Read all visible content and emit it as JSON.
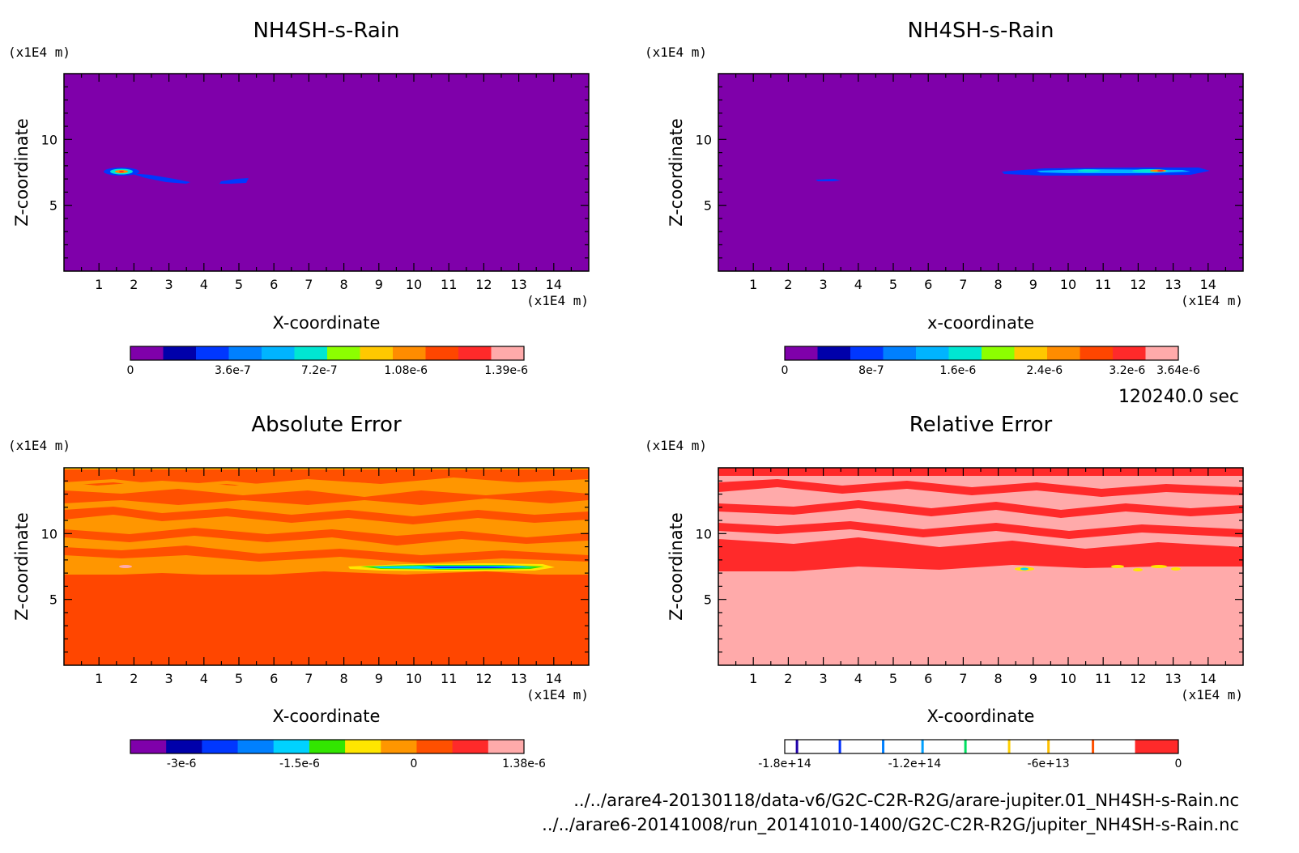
{
  "time_label": "120240.0 sec",
  "footer": {
    "line1": "../../arare4-20130118/data-v6/G2C-C2R-R2G/arare-jupiter.01_NH4SH-s-Rain.nc",
    "line2": "../../arare6-20141008/run_20141010-1400/G2C-C2R-R2G/jupiter_NH4SH-s-Rain.nc"
  },
  "panels": [
    {
      "title": "NH4SH-s-Rain",
      "xlabel": "X-coordinate",
      "ylabel": "Z-coordinate",
      "x_unit": "(x1E4 m)",
      "y_unit": "(x1E4 m)",
      "background_color": "#7f00aa",
      "colorbar": {
        "colors": [
          "#7f00aa",
          "#0000aa",
          "#0037ff",
          "#0080ff",
          "#00b4ff",
          "#00e6d2",
          "#8cff00",
          "#ffc800",
          "#ff8c00",
          "#ff4600",
          "#ff2a2a",
          "#ffaaaa"
        ],
        "labels": [
          "0",
          "3.6e-7",
          "7.2e-7",
          "1.08e-6",
          "1.39e-6"
        ]
      }
    },
    {
      "title": "NH4SH-s-Rain",
      "xlabel": "x-coordinate",
      "ylabel": "Z-coordinate",
      "x_unit": "(x1E4 m)",
      "y_unit": "(x1E4 m)",
      "background_color": "#7f00aa",
      "colorbar": {
        "colors": [
          "#7f00aa",
          "#0000aa",
          "#0037ff",
          "#0080ff",
          "#00b4ff",
          "#00e6d2",
          "#8cff00",
          "#ffc800",
          "#ff8c00",
          "#ff4600",
          "#ff2a2a",
          "#ffaaaa"
        ],
        "labels": [
          "0",
          "8e-7",
          "1.6e-6",
          "2.4e-6",
          "3.2e-6",
          "3.64e-6"
        ]
      }
    },
    {
      "title": "Absolute Error",
      "xlabel": "X-coordinate",
      "ylabel": "Z-coordinate",
      "x_unit": "(x1E4 m)",
      "y_unit": "(x1E4 m)",
      "background_color": "#ff4600",
      "colorbar": {
        "colors": [
          "#7f00aa",
          "#0000aa",
          "#0037ff",
          "#0080ff",
          "#00d2ff",
          "#32e600",
          "#ffe600",
          "#ff9600",
          "#ff5000",
          "#ff2a2a",
          "#ffaaaa"
        ],
        "labels": [
          "-3e-6",
          "-1.5e-6",
          "0",
          "1.38e-6"
        ]
      }
    },
    {
      "title": "Relative Error",
      "xlabel": "X-coordinate",
      "ylabel": "Z-coordinate",
      "x_unit": "(x1E4 m)",
      "y_unit": "(x1E4 m)",
      "background_color": "#ffaaaa",
      "colorbar": {
        "colors": [
          "#ffffff",
          "#ff2a2a"
        ],
        "line_colors": [
          "#2000aa",
          "#0030ff",
          "#0080ff",
          "#00a0ff",
          "#00e060",
          "#ffd000",
          "#ffc000",
          "#ff5000"
        ],
        "labels": [
          "-1.8e+14",
          "-1.2e+14",
          "-6e+13",
          "0"
        ]
      }
    }
  ],
  "chart_data": [
    {
      "type": "heatmap",
      "title": "NH4SH-s-Rain",
      "xlabel": "X-coordinate",
      "ylabel": "Z-coordinate",
      "x_unit": "(x1E4 m)",
      "y_unit": "(x1E4 m)",
      "xlim": [
        0,
        15
      ],
      "ylim": [
        0,
        15
      ],
      "xticks": [
        1,
        2,
        3,
        4,
        5,
        6,
        7,
        8,
        9,
        10,
        11,
        12,
        13,
        14
      ],
      "yticks": [
        5,
        10
      ],
      "colorbar_range": [
        0,
        1.39e-06
      ],
      "features": [
        {
          "x": [
            0.9,
            2.3
          ],
          "z": [
            7.4,
            7.8
          ],
          "peak": 1.39e-06
        },
        {
          "x": [
            2.2,
            3.7
          ],
          "z": [
            6.6,
            7.4
          ],
          "peak": 3.6e-07
        },
        {
          "x": [
            4.5,
            5.3
          ],
          "z": [
            6.6,
            7.0
          ],
          "peak": 3.6e-07
        }
      ]
    },
    {
      "type": "heatmap",
      "title": "NH4SH-s-Rain",
      "xlabel": "x-coordinate",
      "ylabel": "Z-coordinate",
      "x_unit": "(x1E4 m)",
      "y_unit": "(x1E4 m)",
      "xlim": [
        0,
        15
      ],
      "ylim": [
        0,
        15
      ],
      "xticks": [
        1,
        2,
        3,
        4,
        5,
        6,
        7,
        8,
        9,
        10,
        11,
        12,
        13,
        14
      ],
      "yticks": [
        5,
        10
      ],
      "colorbar_range": [
        0,
        3.64e-06
      ],
      "features": [
        {
          "x": [
            2.8,
            3.5
          ],
          "z": [
            6.8,
            7.0
          ],
          "peak": 8e-07
        },
        {
          "x": [
            8.2,
            14.0
          ],
          "z": [
            7.3,
            7.8
          ],
          "peak": 3.64e-06
        }
      ]
    },
    {
      "type": "heatmap",
      "title": "Absolute Error",
      "xlabel": "X-coordinate",
      "ylabel": "Z-coordinate",
      "x_unit": "(x1E4 m)",
      "y_unit": "(x1E4 m)",
      "xlim": [
        0,
        15
      ],
      "ylim": [
        0,
        15
      ],
      "xticks": [
        1,
        2,
        3,
        4,
        5,
        6,
        7,
        8,
        9,
        10,
        11,
        12,
        13,
        14
      ],
      "yticks": [
        5,
        10
      ],
      "colorbar_range": [
        -3.6e-06,
        1.38e-06
      ],
      "features": [
        {
          "x": [
            0,
            15
          ],
          "z": [
            0,
            7.0
          ],
          "value": 0
        },
        {
          "x": [
            0,
            15
          ],
          "z": [
            7.0,
            15
          ],
          "value": "banded 0 to 1.38e-6"
        },
        {
          "x": [
            8.5,
            13.8
          ],
          "z": [
            7.3,
            7.8
          ],
          "peak": -3e-06
        }
      ]
    },
    {
      "type": "heatmap",
      "title": "Relative Error",
      "xlabel": "X-coordinate",
      "ylabel": "Z-coordinate",
      "x_unit": "(x1E4 m)",
      "y_unit": "(x1E4 m)",
      "xlim": [
        0,
        15
      ],
      "ylim": [
        0,
        15
      ],
      "xticks": [
        1,
        2,
        3,
        4,
        5,
        6,
        7,
        8,
        9,
        10,
        11,
        12,
        13,
        14
      ],
      "yticks": [
        5,
        10
      ],
      "colorbar_range": [
        -180000000000000.0,
        0
      ],
      "features": [
        {
          "x": [
            0,
            15
          ],
          "z": [
            0,
            7.0
          ],
          "value": 0
        },
        {
          "x": [
            0,
            15
          ],
          "z": [
            7.0,
            15
          ],
          "value": "banded near 0"
        },
        {
          "x": [
            9.0,
            13.5
          ],
          "z": [
            7.3,
            7.8
          ],
          "value": "isolated spots"
        }
      ]
    }
  ]
}
